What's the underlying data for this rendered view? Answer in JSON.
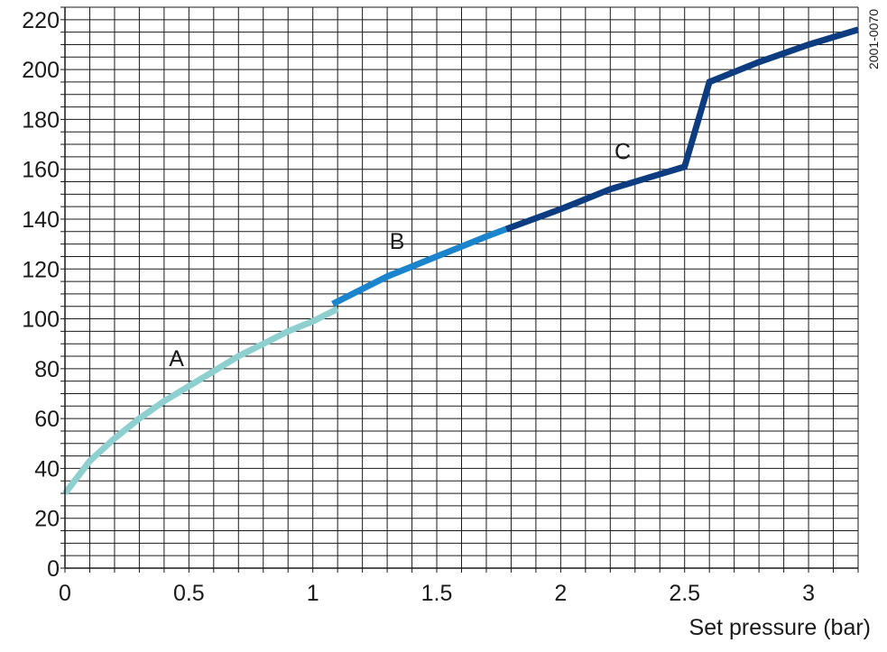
{
  "chart_data": {
    "type": "line",
    "title": "",
    "xlabel": "Set pressure (bar)",
    "ylabel": "",
    "figure_code": "2001-0070",
    "xlim": [
      0,
      3.2
    ],
    "ylim": [
      0,
      225
    ],
    "xticks": [
      0,
      0.5,
      1,
      1.5,
      2,
      2.5,
      3
    ],
    "xtick_labels": [
      "0",
      "0.5",
      "1",
      "1.5",
      "2",
      "2.5",
      "3"
    ],
    "yticks": [
      0,
      20,
      40,
      60,
      80,
      100,
      120,
      140,
      160,
      180,
      200,
      220
    ],
    "ytick_labels": [
      "0",
      "20",
      "40",
      "60",
      "80",
      "100",
      "120",
      "140",
      "160",
      "180",
      "200",
      "220"
    ],
    "grid": true,
    "grid_x_step": 0.1,
    "grid_y_step": 5,
    "series": [
      {
        "label": "A",
        "color": "#8ecfd0",
        "x": [
          0,
          0.1,
          0.2,
          0.3,
          0.4,
          0.5,
          0.6,
          0.7,
          0.8,
          0.9,
          1.0,
          1.1
        ],
        "y": [
          30,
          43,
          52,
          60,
          67,
          73,
          79,
          85,
          90,
          95,
          99,
          104
        ]
      },
      {
        "label": "B",
        "color": "#1a85cc",
        "x": [
          1.08,
          1.2,
          1.3,
          1.4,
          1.5,
          1.6,
          1.7,
          1.78
        ],
        "y": [
          106,
          112,
          117,
          121,
          125,
          129,
          133,
          136
        ]
      },
      {
        "label": "C",
        "color": "#0d3d80",
        "x": [
          1.78,
          2.0,
          2.2,
          2.4,
          2.5,
          2.6,
          2.8,
          3.0,
          3.2
        ],
        "y": [
          136,
          144,
          152,
          158,
          161,
          195,
          203,
          210,
          216
        ]
      }
    ],
    "annotations": [
      {
        "text": "A",
        "x": 0.45,
        "y": 81
      },
      {
        "text": "B",
        "x": 1.34,
        "y": 128
      },
      {
        "text": "C",
        "x": 2.25,
        "y": 164
      }
    ]
  }
}
